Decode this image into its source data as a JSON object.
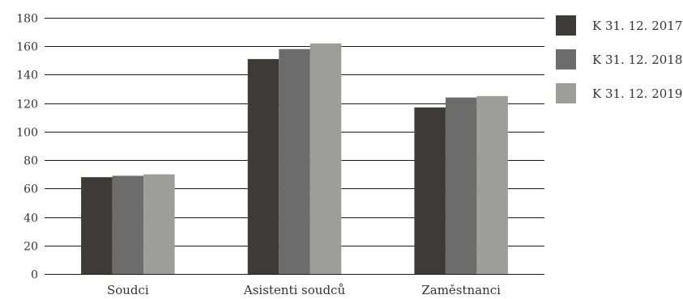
{
  "chart_data": {
    "type": "bar",
    "categories": [
      "Soudci",
      "Asistenti soudců",
      "Zaměstnanci"
    ],
    "series": [
      {
        "name": "K 31. 12. 2017",
        "values": [
          68,
          151,
          117
        ],
        "color": "#3c3b3a"
      },
      {
        "name": "K 31. 12. 2018",
        "values": [
          69,
          158,
          124
        ],
        "color": "#6c6c6c"
      },
      {
        "name": "K 31. 12. 2019",
        "values": [
          70,
          162,
          125
        ],
        "color": "#9d9d9c"
      }
    ],
    "title": "",
    "xlabel": "",
    "ylabel": "",
    "ylim": [
      0,
      180
    ],
    "yticks": [
      0,
      20,
      40,
      60,
      80,
      100,
      120,
      140,
      160,
      180
    ],
    "grid": true,
    "legend_position": "right"
  }
}
